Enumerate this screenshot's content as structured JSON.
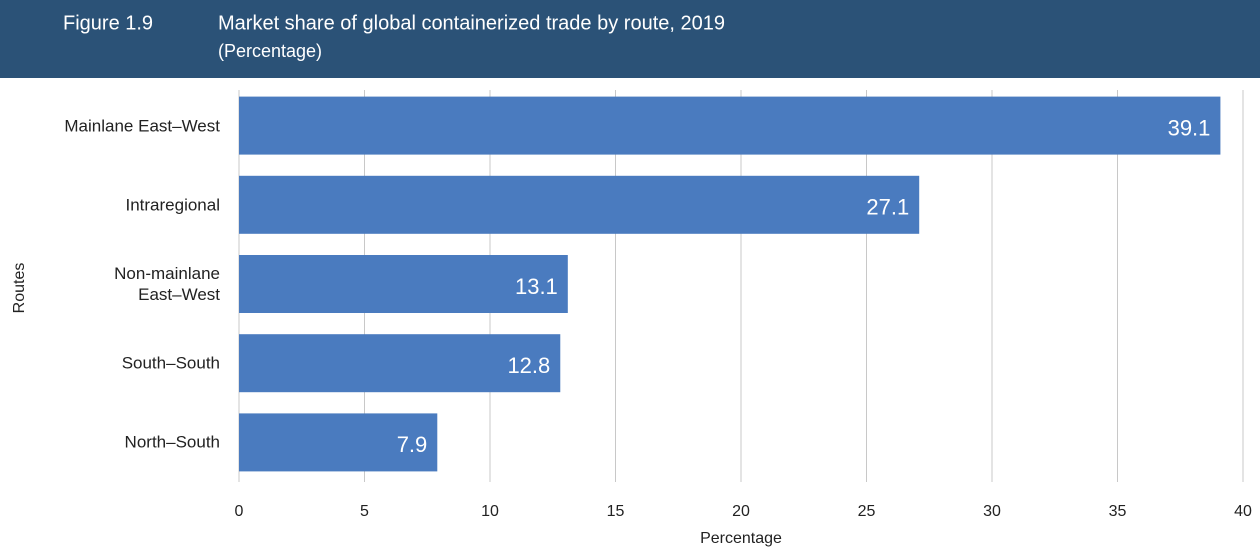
{
  "figure_label": "Figure 1.9",
  "chart_data": {
    "type": "hbar",
    "title": "Market share of global containerized trade by route, 2019",
    "subtitle": "(Percentage)",
    "categories": [
      "Mainlane East–West",
      "Intraregional",
      "Non-mainlane\nEast–West",
      "South–South",
      "North–South"
    ],
    "values": [
      39.1,
      27.1,
      13.1,
      12.8,
      7.9
    ],
    "color": "#4a7bbf",
    "xlim": [
      0,
      40
    ],
    "xticks": [
      0,
      5,
      10,
      15,
      20,
      25,
      30,
      35,
      40
    ],
    "grid": true,
    "xlabel": "Percentage",
    "ylabel": "Routes"
  }
}
